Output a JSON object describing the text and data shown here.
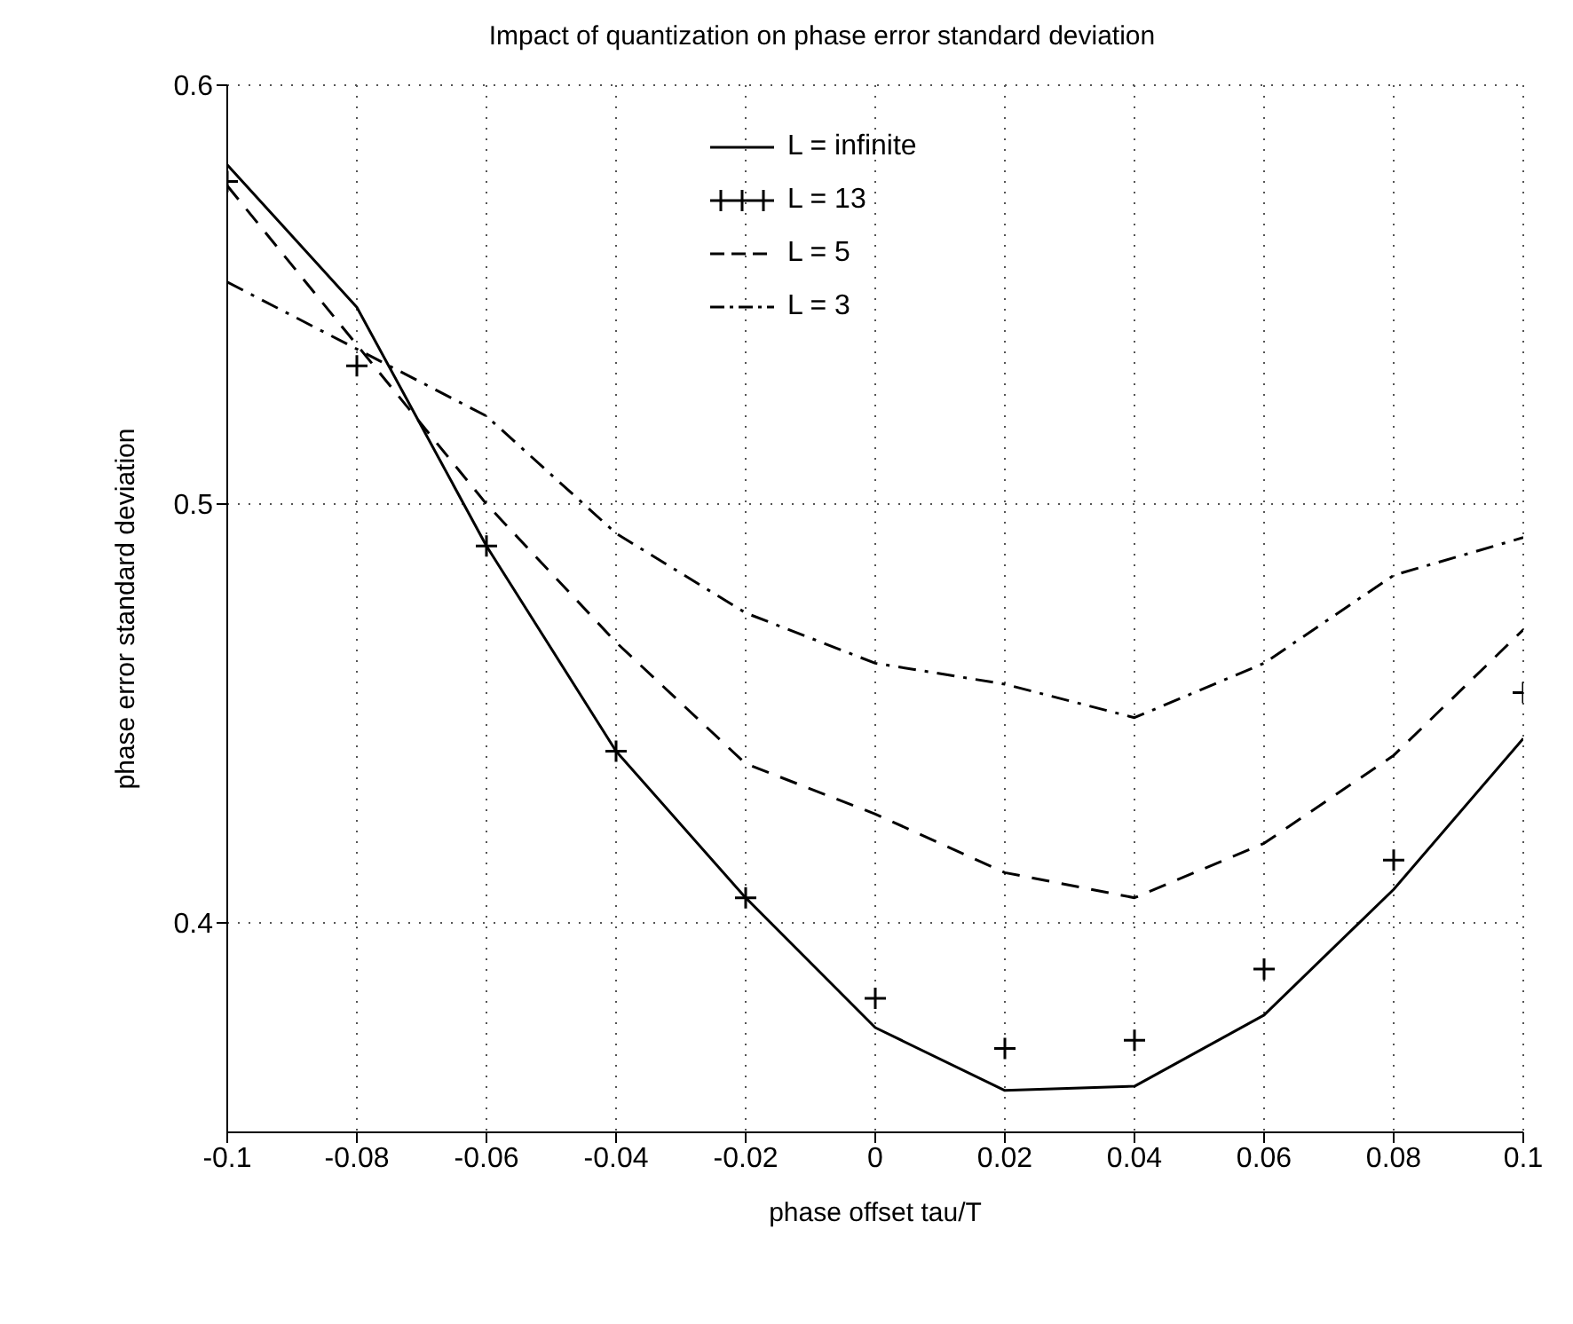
{
  "chart_data": {
    "type": "line",
    "title": "Impact of quantization on phase error standard deviation",
    "xlabel": "phase offset tau/T",
    "ylabel": "phase error standard deviation",
    "x": [
      -0.1,
      -0.08,
      -0.06,
      -0.04,
      -0.02,
      0,
      0.02,
      0.04,
      0.06,
      0.08,
      0.1
    ],
    "series": [
      {
        "name": "L = infinite",
        "color": "#000000",
        "line_style": "solid",
        "marker": "none",
        "values": [
          0.581,
          0.547,
          0.49,
          0.441,
          0.406,
          0.375,
          0.36,
          0.361,
          0.378,
          0.408,
          0.444
        ]
      },
      {
        "name": "L = 13",
        "type": "scatter",
        "color": "#000000",
        "marker": "cross",
        "values": [
          0.577,
          0.533,
          0.49,
          0.441,
          0.406,
          0.382,
          0.37,
          0.372,
          0.389,
          0.415,
          0.455
        ]
      },
      {
        "name": "L = 5",
        "color": "#000000",
        "line_style": "dashed",
        "marker": "none",
        "values": [
          0.576,
          0.538,
          0.5,
          0.467,
          0.438,
          0.426,
          0.412,
          0.406,
          0.419,
          0.44,
          0.47
        ]
      },
      {
        "name": "L = 3",
        "color": "#000000",
        "line_style": "dashdot",
        "marker": "none",
        "values": [
          0.553,
          0.537,
          0.521,
          0.493,
          0.474,
          0.462,
          0.457,
          0.449,
          0.462,
          0.483,
          0.492
        ]
      }
    ],
    "xlim": [
      -0.1,
      0.1
    ],
    "xticks": [
      -0.1,
      -0.08,
      -0.06,
      -0.04,
      -0.02,
      0,
      0.02,
      0.04,
      0.06,
      0.08,
      0.1
    ],
    "ylim": [
      0.35,
      0.6
    ],
    "yticks": [
      0.4,
      0.5,
      0.6
    ],
    "grid": true,
    "legend": "top"
  }
}
